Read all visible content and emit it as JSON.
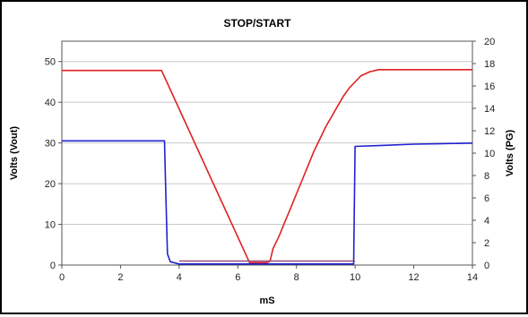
{
  "chart_data": {
    "type": "line",
    "title": "STOP/START",
    "xlabel": "mS",
    "ylabel": "Volts (Vout)",
    "y2label": "Volts (PG)",
    "xlim": [
      0,
      14
    ],
    "ylim": [
      0,
      55
    ],
    "y2lim": [
      0,
      20
    ],
    "x_ticks": [
      0,
      2,
      4,
      6,
      8,
      10,
      12,
      14
    ],
    "y_ticks": [
      0,
      10,
      20,
      30,
      40,
      50
    ],
    "y2_ticks": [
      0,
      2,
      4,
      6,
      8,
      10,
      12,
      14,
      16,
      18,
      20
    ],
    "grid": true,
    "legend": "none",
    "series": [
      {
        "axis": "left",
        "color": "#e02020",
        "points": [
          [
            0,
            47.8
          ],
          [
            3.4,
            47.8
          ],
          [
            6.4,
            0.6
          ],
          [
            6.5,
            0.6
          ],
          [
            7.0,
            0.6
          ],
          [
            7.1,
            1.0
          ],
          [
            7.2,
            4.0
          ],
          [
            7.4,
            7.0
          ],
          [
            7.6,
            10.5
          ],
          [
            7.8,
            14.0
          ],
          [
            8.0,
            17.5
          ],
          [
            8.2,
            21.0
          ],
          [
            8.4,
            24.5
          ],
          [
            8.6,
            28.0
          ],
          [
            8.8,
            31.0
          ],
          [
            9.0,
            34.0
          ],
          [
            9.2,
            36.5
          ],
          [
            9.4,
            39.0
          ],
          [
            9.6,
            41.5
          ],
          [
            9.8,
            43.5
          ],
          [
            10.0,
            45.0
          ],
          [
            10.2,
            46.5
          ],
          [
            10.5,
            47.5
          ],
          [
            10.8,
            48.0
          ],
          [
            14,
            48.0
          ]
        ]
      },
      {
        "axis": "right",
        "color": "#2020d0",
        "points": [
          [
            0,
            11.1
          ],
          [
            3.5,
            11.1
          ],
          [
            3.55,
            6.0
          ],
          [
            3.6,
            1.0
          ],
          [
            3.7,
            0.3
          ],
          [
            4.0,
            0.1
          ],
          [
            9.95,
            0.1
          ],
          [
            10.0,
            10.6
          ],
          [
            11.0,
            10.7
          ],
          [
            12.0,
            10.8
          ],
          [
            13.0,
            10.85
          ],
          [
            14,
            10.9
          ]
        ]
      },
      {
        "axis": "left",
        "color": "#9a4a7a",
        "points": [
          [
            4.0,
            1.0
          ],
          [
            10.0,
            1.0
          ]
        ]
      }
    ]
  }
}
